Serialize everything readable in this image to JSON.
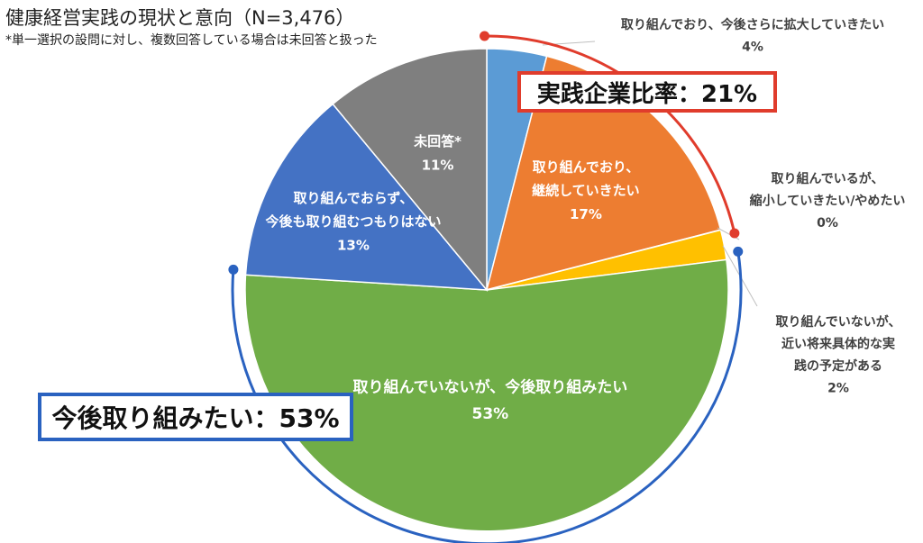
{
  "title": "健康経営実践の現状と意向（N=3,476）",
  "note": "*単一選択の設問に対し、複数回答している場合は未回答と扱った",
  "callouts": {
    "practice": "実践企業比率：21%",
    "intend": "今後取り組みたい：53%"
  },
  "colors": {
    "blue_light": "#5b9bd5",
    "orange": "#ed7d31",
    "yellow": "#ffc000",
    "green": "#70ad47",
    "blue": "#4472c4",
    "gray": "#7f7f7f",
    "callout_red": "#e03c2c",
    "callout_blue": "#2a62c0"
  },
  "chart_data": {
    "type": "pie",
    "title": "健康経営実践の現状と意向（N=3,476）",
    "slices": [
      {
        "lines": [
          "取り組んでおり、今後さらに拡大していきたい"
        ],
        "pct": "4%",
        "value": 4,
        "color": "#5b9bd5",
        "label_inside": false
      },
      {
        "lines": [
          "取り組んでおり、",
          "継続していきたい"
        ],
        "pct": "17%",
        "value": 17,
        "color": "#ed7d31",
        "label_inside": true
      },
      {
        "lines": [
          "取り組んでいるが、",
          "縮小していきたい/やめたい"
        ],
        "pct": "0%",
        "value": 0,
        "color": "#a5a5a5",
        "label_inside": false
      },
      {
        "lines": [
          "取り組んでいないが、",
          "近い将来具体的な実",
          "践の予定がある"
        ],
        "pct": "2%",
        "value": 2,
        "color": "#ffc000",
        "label_inside": false
      },
      {
        "lines": [
          "取り組んでいないが、今後取り組みたい"
        ],
        "pct": "53%",
        "value": 53,
        "color": "#70ad47",
        "label_inside": true
      },
      {
        "lines": [
          "取り組んでおらず、",
          "今後も取り組むつもりはない"
        ],
        "pct": "13%",
        "value": 13,
        "color": "#4472c4",
        "label_inside": true
      },
      {
        "lines": [
          "未回答*"
        ],
        "pct": "11%",
        "value": 11,
        "color": "#7f7f7f",
        "label_inside": true
      }
    ]
  }
}
